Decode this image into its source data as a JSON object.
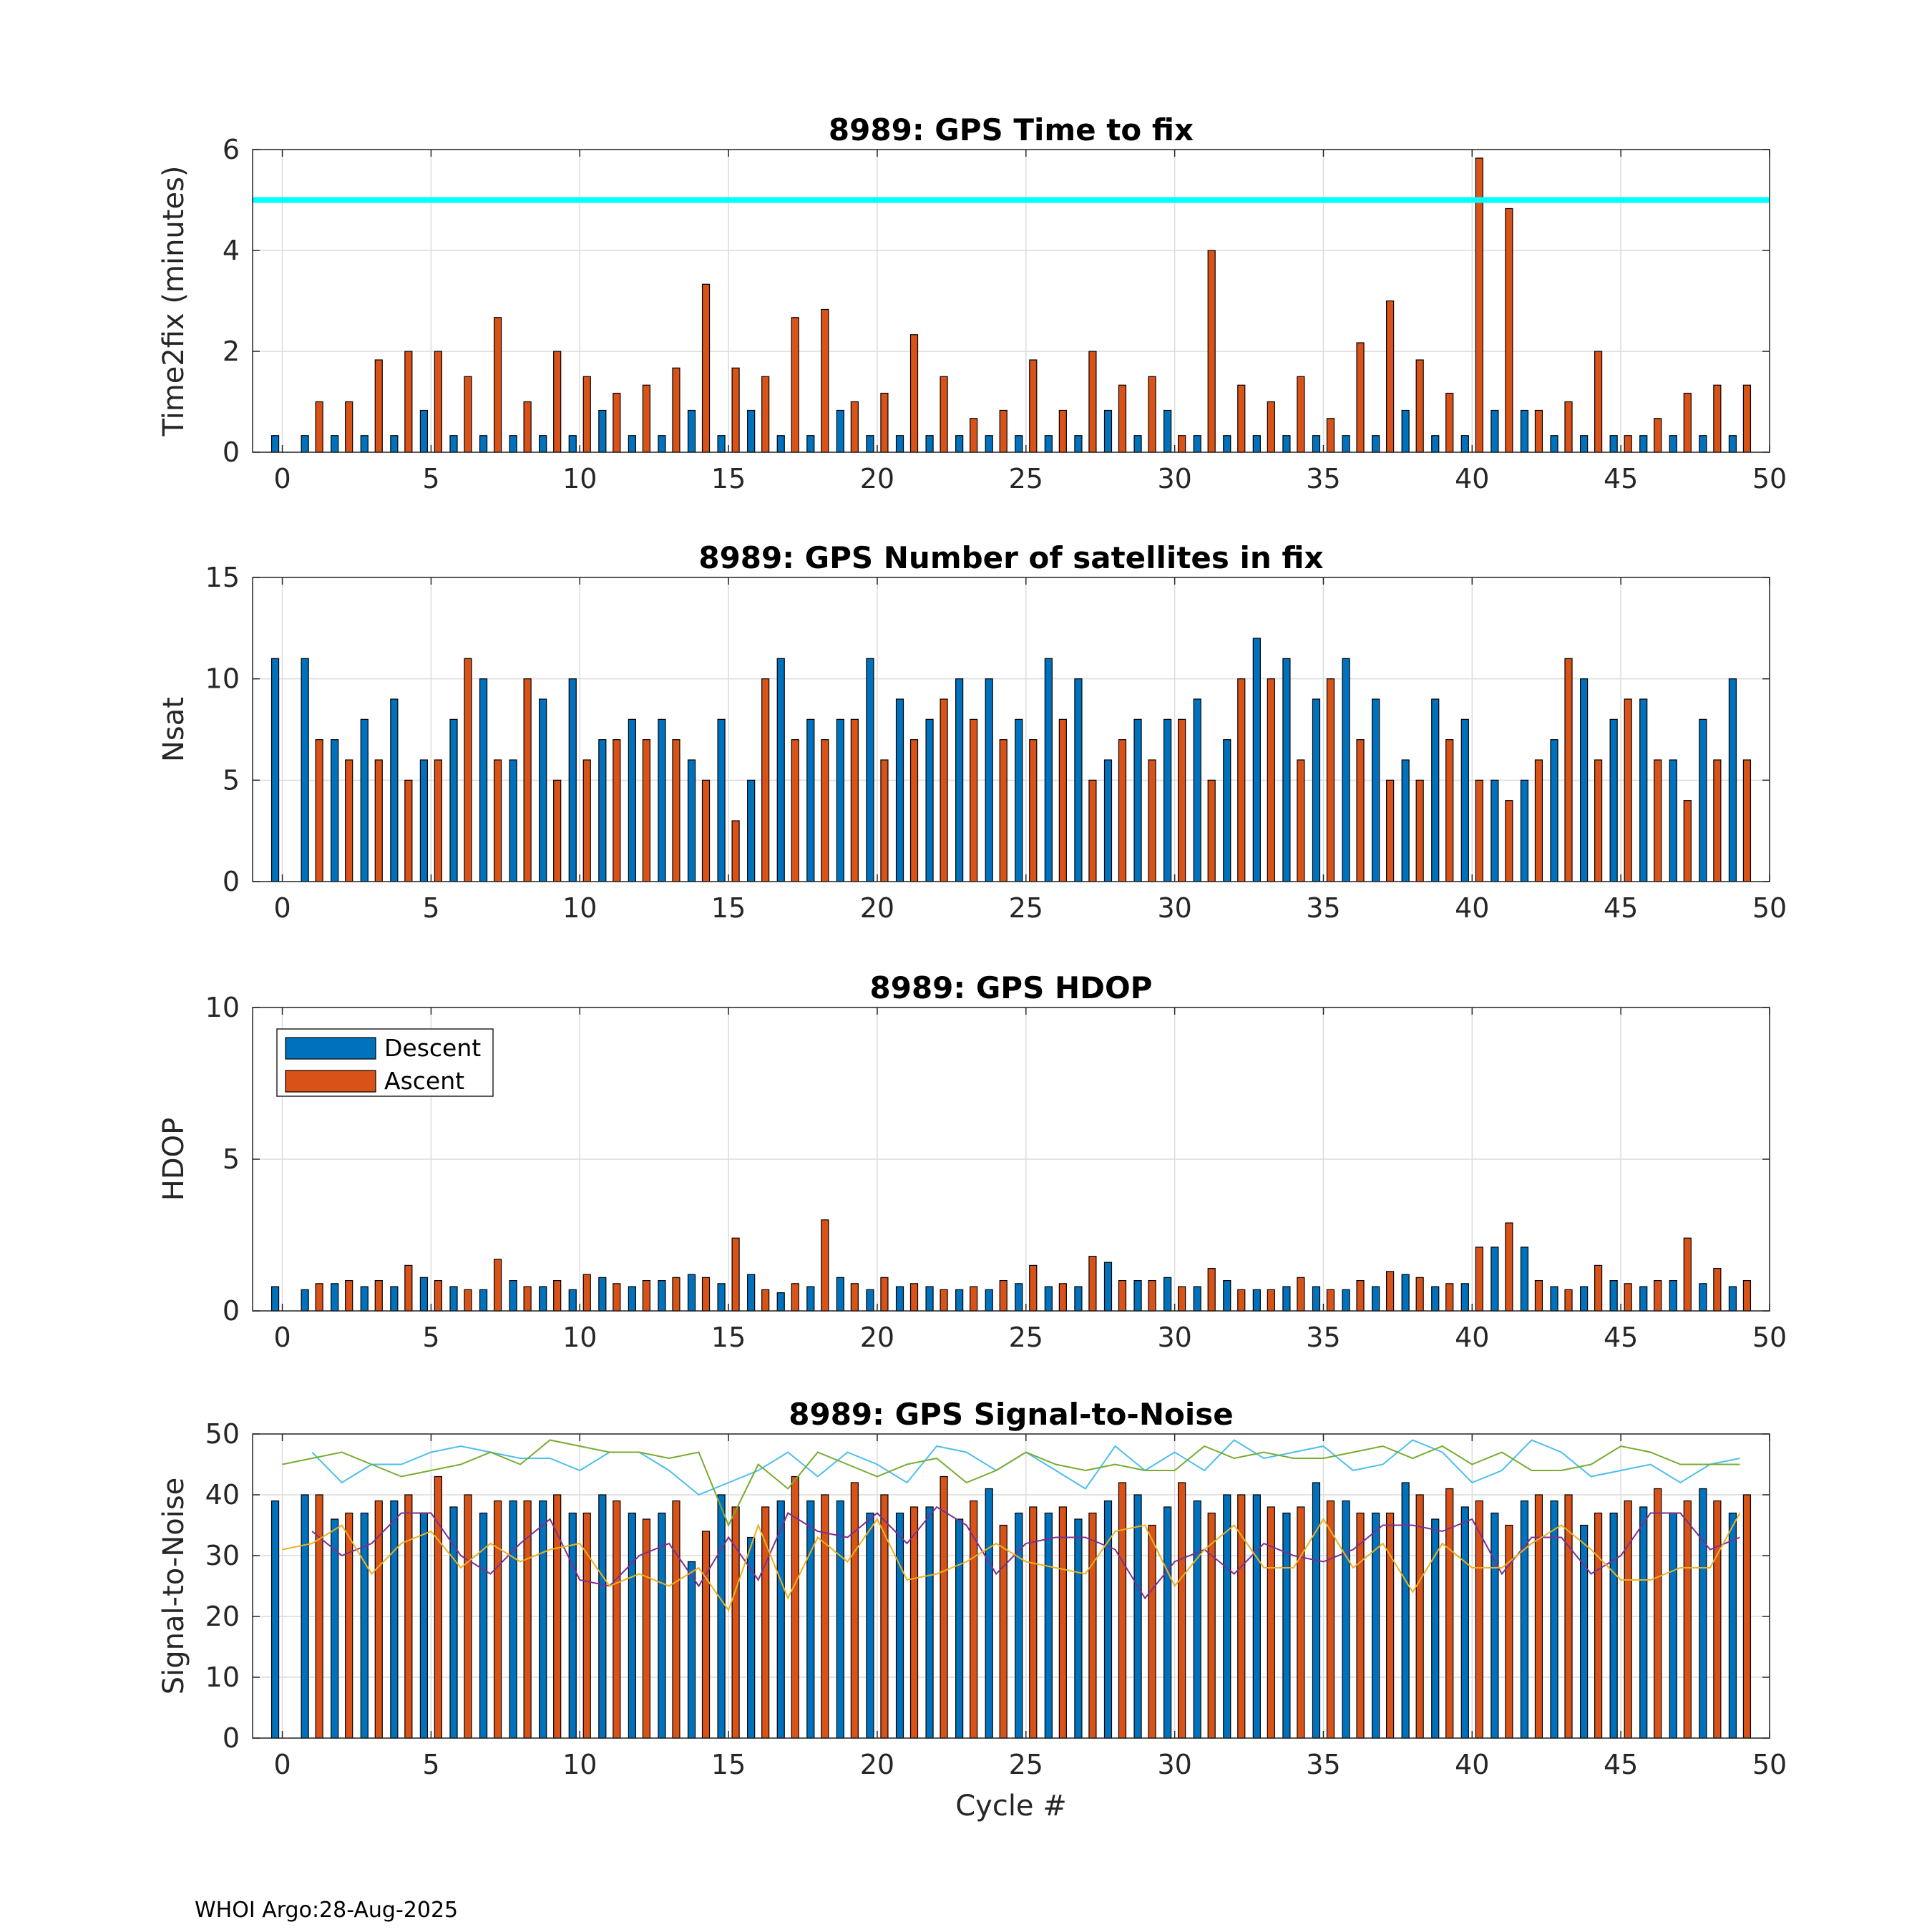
{
  "footer": "WHOI Argo:28-Aug-2025",
  "colors": {
    "descent": "#0072BD",
    "ascent": "#D95319",
    "threshold": "#00FFFF",
    "snr_lines": [
      "#4DBEEE",
      "#77AC30",
      "#7E2F8E",
      "#EDB120"
    ]
  },
  "chart_data": [
    {
      "type": "bar",
      "title": "8989: GPS Time to fix",
      "xlabel": "",
      "ylabel": "Time2fix (minutes)",
      "xlim": [
        -1,
        50
      ],
      "ylim": [
        0,
        6
      ],
      "xticks": [
        0,
        5,
        10,
        15,
        20,
        25,
        30,
        35,
        40,
        45,
        50
      ],
      "yticks": [
        0,
        2,
        4,
        6
      ],
      "grid": true,
      "x": [
        0,
        1,
        2,
        3,
        4,
        5,
        6,
        7,
        8,
        9,
        10,
        11,
        12,
        13,
        14,
        15,
        16,
        17,
        18,
        19,
        20,
        21,
        22,
        23,
        24,
        25,
        26,
        27,
        28,
        29,
        30,
        31,
        32,
        33,
        34,
        35,
        36,
        37,
        38,
        39,
        40,
        41,
        42,
        43,
        44,
        45,
        46,
        47,
        48,
        49
      ],
      "series": [
        {
          "name": "Descent",
          "values": [
            0.33,
            0.33,
            0.33,
            0.33,
            0.33,
            0.83,
            0.33,
            0.33,
            0.33,
            0.33,
            0.33,
            0.83,
            0.33,
            0.33,
            0.83,
            0.33,
            0.83,
            0.33,
            0.33,
            0.83,
            0.33,
            0.33,
            0.33,
            0.33,
            0.33,
            0.33,
            0.33,
            0.33,
            0.83,
            0.33,
            0.83,
            0.33,
            0.33,
            0.33,
            0.33,
            0.33,
            0.33,
            0.33,
            0.83,
            0.33,
            0.33,
            0.83,
            0.83,
            0.33,
            0.33,
            0.33,
            0.33,
            0.33,
            0.33,
            0.33
          ]
        },
        {
          "name": "Ascent",
          "values": [
            null,
            1.0,
            1.0,
            1.83,
            2.0,
            2.0,
            1.5,
            2.67,
            1.0,
            2.0,
            1.5,
            1.17,
            1.33,
            1.67,
            3.33,
            1.67,
            1.5,
            2.67,
            2.83,
            1.0,
            1.17,
            2.33,
            1.5,
            0.67,
            0.83,
            1.83,
            0.83,
            2.0,
            1.33,
            1.5,
            0.33,
            4.0,
            1.33,
            1.0,
            1.5,
            0.67,
            2.17,
            3.0,
            1.83,
            1.17,
            5.83,
            4.83,
            0.83,
            1.0,
            2.0,
            0.33,
            0.67,
            1.17,
            1.33,
            1.33
          ]
        }
      ],
      "reference_line": {
        "y": 5
      }
    },
    {
      "type": "bar",
      "title": "8989: GPS Number of satellites in fix",
      "xlabel": "",
      "ylabel": "Nsat",
      "xlim": [
        -1,
        50
      ],
      "ylim": [
        0,
        15
      ],
      "xticks": [
        0,
        5,
        10,
        15,
        20,
        25,
        30,
        35,
        40,
        45,
        50
      ],
      "yticks": [
        0,
        5,
        10,
        15
      ],
      "grid": true,
      "x": [
        0,
        1,
        2,
        3,
        4,
        5,
        6,
        7,
        8,
        9,
        10,
        11,
        12,
        13,
        14,
        15,
        16,
        17,
        18,
        19,
        20,
        21,
        22,
        23,
        24,
        25,
        26,
        27,
        28,
        29,
        30,
        31,
        32,
        33,
        34,
        35,
        36,
        37,
        38,
        39,
        40,
        41,
        42,
        43,
        44,
        45,
        46,
        47,
        48,
        49
      ],
      "series": [
        {
          "name": "Descent",
          "values": [
            11,
            11,
            7,
            8,
            9,
            6,
            8,
            10,
            6,
            9,
            10,
            7,
            8,
            8,
            6,
            8,
            5,
            11,
            8,
            8,
            11,
            9,
            8,
            10,
            10,
            8,
            11,
            10,
            6,
            8,
            8,
            9,
            7,
            12,
            11,
            9,
            11,
            9,
            6,
            9,
            8,
            5,
            5,
            7,
            10,
            8,
            9,
            6,
            8,
            10
          ]
        },
        {
          "name": "Ascent",
          "values": [
            null,
            7,
            6,
            6,
            5,
            6,
            11,
            6,
            10,
            5,
            6,
            7,
            7,
            7,
            5,
            3,
            10,
            7,
            7,
            8,
            6,
            7,
            9,
            8,
            7,
            7,
            8,
            5,
            7,
            6,
            8,
            5,
            10,
            10,
            6,
            10,
            7,
            5,
            5,
            7,
            5,
            4,
            6,
            11,
            6,
            9,
            6,
            4,
            6,
            6
          ]
        }
      ]
    },
    {
      "type": "bar",
      "title": "8989: GPS HDOP",
      "xlabel": "",
      "ylabel": "HDOP",
      "xlim": [
        -1,
        50
      ],
      "ylim": [
        0,
        10
      ],
      "xticks": [
        0,
        5,
        10,
        15,
        20,
        25,
        30,
        35,
        40,
        45,
        50
      ],
      "yticks": [
        0,
        5,
        10
      ],
      "grid": true,
      "legend": {
        "position": "top-left",
        "entries": [
          "Descent",
          "Ascent"
        ]
      },
      "x": [
        0,
        1,
        2,
        3,
        4,
        5,
        6,
        7,
        8,
        9,
        10,
        11,
        12,
        13,
        14,
        15,
        16,
        17,
        18,
        19,
        20,
        21,
        22,
        23,
        24,
        25,
        26,
        27,
        28,
        29,
        30,
        31,
        32,
        33,
        34,
        35,
        36,
        37,
        38,
        39,
        40,
        41,
        42,
        43,
        44,
        45,
        46,
        47,
        48,
        49
      ],
      "series": [
        {
          "name": "Descent",
          "values": [
            0.8,
            0.7,
            0.9,
            0.8,
            0.8,
            1.1,
            0.8,
            0.7,
            1.0,
            0.8,
            0.7,
            1.1,
            0.8,
            1.0,
            1.2,
            0.9,
            1.2,
            0.6,
            0.8,
            1.1,
            0.7,
            0.8,
            0.8,
            0.7,
            0.7,
            0.9,
            0.8,
            0.8,
            1.6,
            1.0,
            1.1,
            0.8,
            1.0,
            0.7,
            0.8,
            0.8,
            0.7,
            0.8,
            1.2,
            0.8,
            0.9,
            2.1,
            2.1,
            0.8,
            0.8,
            1.0,
            0.8,
            1.0,
            0.9,
            0.8
          ]
        },
        {
          "name": "Ascent",
          "values": [
            null,
            0.9,
            1.0,
            1.0,
            1.5,
            1.0,
            0.7,
            1.7,
            0.8,
            1.0,
            1.2,
            0.9,
            1.0,
            1.1,
            1.1,
            2.4,
            0.7,
            0.9,
            3.0,
            0.9,
            1.1,
            0.9,
            0.7,
            0.8,
            1.0,
            1.5,
            0.9,
            1.8,
            1.0,
            1.0,
            0.8,
            1.4,
            0.7,
            0.7,
            1.1,
            0.7,
            1.0,
            1.3,
            1.1,
            0.9,
            2.1,
            2.9,
            1.0,
            0.7,
            1.5,
            0.9,
            1.0,
            2.4,
            1.4,
            1.0
          ]
        }
      ]
    },
    {
      "type": "bar",
      "title": "8989: GPS Signal-to-Noise",
      "xlabel": "Cycle #",
      "ylabel": "Signal-to-Noise",
      "xlim": [
        -1,
        50
      ],
      "ylim": [
        0,
        50
      ],
      "xticks": [
        0,
        5,
        10,
        15,
        20,
        25,
        30,
        35,
        40,
        45,
        50
      ],
      "yticks": [
        0,
        10,
        20,
        30,
        40,
        50
      ],
      "grid": true,
      "x": [
        0,
        1,
        2,
        3,
        4,
        5,
        6,
        7,
        8,
        9,
        10,
        11,
        12,
        13,
        14,
        15,
        16,
        17,
        18,
        19,
        20,
        21,
        22,
        23,
        24,
        25,
        26,
        27,
        28,
        29,
        30,
        31,
        32,
        33,
        34,
        35,
        36,
        37,
        38,
        39,
        40,
        41,
        42,
        43,
        44,
        45,
        46,
        47,
        48,
        49
      ],
      "series": [
        {
          "name": "Descent",
          "values": [
            39,
            40,
            36,
            37,
            39,
            37,
            38,
            37,
            39,
            39,
            37,
            40,
            37,
            37,
            29,
            40,
            33,
            39,
            39,
            39,
            37,
            37,
            38,
            36,
            41,
            37,
            37,
            36,
            39,
            40,
            38,
            39,
            40,
            40,
            37,
            42,
            39,
            37,
            42,
            36,
            38,
            37,
            39,
            39,
            35,
            37,
            38,
            37,
            41,
            37
          ]
        },
        {
          "name": "Ascent",
          "values": [
            null,
            40,
            37,
            39,
            40,
            43,
            40,
            39,
            39,
            40,
            37,
            39,
            36,
            39,
            34,
            38,
            38,
            43,
            40,
            42,
            40,
            38,
            43,
            39,
            35,
            38,
            38,
            37,
            42,
            35,
            42,
            37,
            40,
            38,
            38,
            39,
            37,
            37,
            40,
            41,
            39,
            35,
            40,
            40,
            37,
            39,
            41,
            39,
            39,
            40
          ]
        }
      ],
      "lines": [
        {
          "name": "SNR line 1",
          "values": [
            null,
            47,
            42,
            45,
            45,
            47,
            48,
            47,
            46,
            46,
            44,
            47,
            47,
            44,
            40,
            42,
            44,
            47,
            43,
            47,
            45,
            42,
            48,
            47,
            44,
            47,
            44,
            41,
            48,
            44,
            47,
            44,
            49,
            46,
            47,
            48,
            44,
            45,
            49,
            47,
            42,
            44,
            49,
            47,
            43,
            44,
            45,
            42,
            45,
            46
          ]
        },
        {
          "name": "SNR line 2",
          "values": [
            45,
            46,
            47,
            45,
            43,
            44,
            45,
            47,
            45,
            49,
            48,
            47,
            47,
            46,
            47,
            35,
            45,
            41,
            47,
            45,
            43,
            45,
            46,
            42,
            44,
            47,
            45,
            44,
            45,
            44,
            44,
            48,
            46,
            47,
            46,
            46,
            47,
            48,
            46,
            48,
            45,
            47,
            44,
            44,
            45,
            48,
            47,
            45,
            45,
            45
          ]
        },
        {
          "name": "SNR line 3",
          "values": [
            null,
            34,
            30,
            32,
            37,
            37,
            30,
            27,
            32,
            36,
            26,
            25,
            30,
            32,
            25,
            33,
            26,
            37,
            34,
            33,
            37,
            32,
            38,
            35,
            27,
            32,
            33,
            33,
            31,
            23,
            29,
            31,
            27,
            32,
            30,
            29,
            31,
            35,
            35,
            34,
            36,
            27,
            33,
            33,
            27,
            30,
            37,
            37,
            31,
            33
          ]
        },
        {
          "name": "SNR line 4",
          "values": [
            31,
            32,
            35,
            27,
            32,
            34,
            28,
            32,
            29,
            31,
            32,
            25,
            27,
            25,
            28,
            21,
            35,
            23,
            33,
            29,
            36,
            26,
            27,
            29,
            32,
            29,
            28,
            27,
            34,
            35,
            25,
            31,
            35,
            28,
            28,
            36,
            28,
            32,
            24,
            32,
            28,
            28,
            32,
            35,
            31,
            26,
            26,
            28,
            28,
            37
          ]
        }
      ]
    }
  ]
}
